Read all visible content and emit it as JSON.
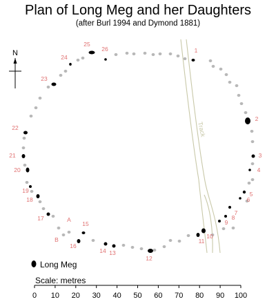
{
  "title": "Plan of Long Meg and her Daughters",
  "subtitle": "(after Burl 1994 and Dymond 1881)",
  "north_label": "N",
  "track_label": "Track",
  "legend_label": "Long Meg",
  "scale_label": "Scale: metres",
  "scale_ticks": [
    "0",
    "10",
    "20",
    "30",
    "40",
    "50",
    "60",
    "70",
    "80",
    "90",
    "100"
  ],
  "colors": {
    "stone_numbered": "#000000",
    "stone_other": "#b8b8b8",
    "stone_label": "#e07070",
    "track": "#c8c8a8",
    "text": "#000000"
  },
  "stone_labels": [
    "1",
    "2",
    "3",
    "4",
    "5",
    "6",
    "7",
    "8",
    "9",
    "10",
    "11",
    "12",
    "13",
    "14",
    "15",
    "16",
    "17",
    "18",
    "19",
    "20",
    "21",
    "22",
    "23",
    "24",
    "25",
    "26",
    "A",
    "B"
  ]
}
